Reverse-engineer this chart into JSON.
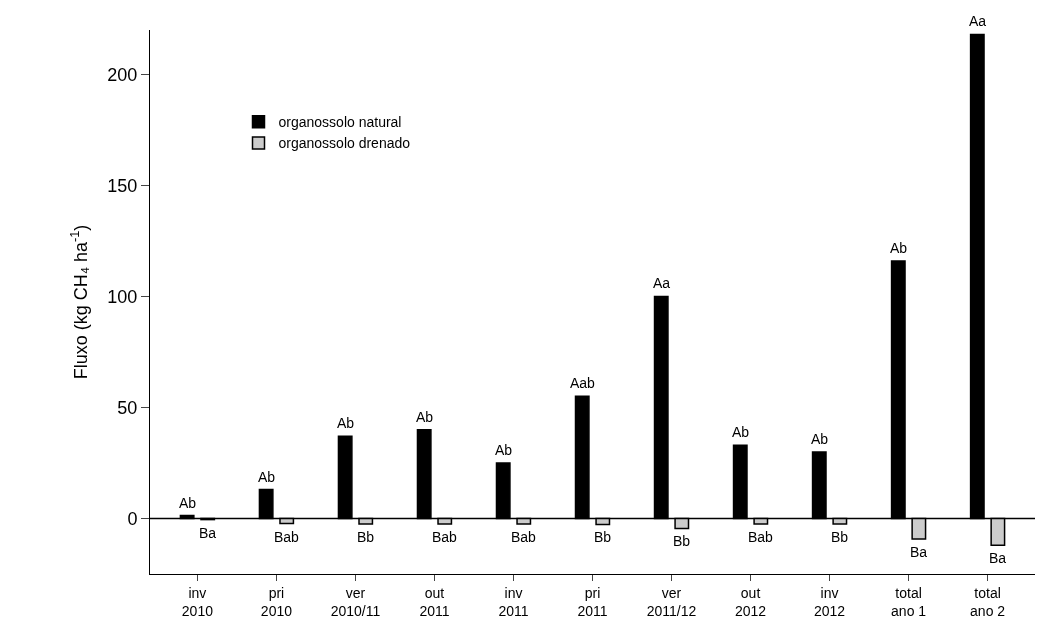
{
  "chart_data": {
    "type": "bar",
    "ylabel": "Fluxo (kg CH₄ ha$^{-1}$)",
    "categories": [
      "inv\n2010",
      "pri\n2010",
      "ver\n2010/11",
      "out\n2011",
      "inv\n2011",
      "pri\n2011",
      "ver\n2011/12",
      "out\n2012",
      "inv\n2012",
      "total\nano 1",
      "total\nano 2"
    ],
    "series": [
      {
        "name": "organossolo natural",
        "color": "#000000",
        "values": [
          1.3,
          13,
          37,
          40,
          25,
          55,
          100,
          33,
          30,
          116,
          218
        ],
        "value_labels": [
          "Ab",
          "Ab",
          "Ab",
          "Ab",
          "Ab",
          "Aab",
          "Aa",
          "Ab",
          "Ab",
          "Ab",
          "Aa"
        ]
      },
      {
        "name": "organossolo drenado",
        "color": "#cccccc",
        "values": [
          -0.5,
          -2.3,
          -2.5,
          -2.5,
          -2.5,
          -2.7,
          -4.5,
          -2.5,
          -2.5,
          -9.2,
          -12
        ],
        "value_labels": [
          "Ba",
          "Bab",
          "Bb",
          "Bab",
          "Bab",
          "Bb",
          "Bb",
          "Bab",
          "Bb",
          "Ba",
          "Ba"
        ]
      }
    ],
    "ylim": [
      -25,
      220
    ],
    "yticks": [
      0,
      50,
      100,
      150,
      200
    ],
    "ref_lines": [
      {
        "axis": "y",
        "value": 0,
        "color": "#000000"
      }
    ],
    "grid": false,
    "legend": "top left"
  }
}
